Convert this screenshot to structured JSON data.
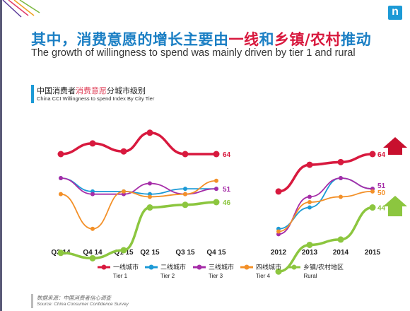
{
  "logo_text": "n",
  "title_parts": {
    "p1": "其中，消费意愿的增长主要由",
    "p2": "一线",
    "p3": "和",
    "p4": "乡镇/农村",
    "p5": "推动"
  },
  "subtitle": "The growth of willingness to spend was mainly driven by tier 1 and rural",
  "chart_title": {
    "cn_prefix": "中国消费者",
    "cn_highlight": "消费意愿",
    "cn_suffix": "分城市级别",
    "en": "China CCI Willingness to spend Index By City Tier"
  },
  "source": {
    "cn": "数据来源：中国消费者信心调查",
    "en": "Source: China Consumer Confidence Survey"
  },
  "colors": {
    "title_blue": "#1b7fc4",
    "highlight_red": "#d8193e",
    "arrow_up": "#8cc63f",
    "arrow_down": "#c8102e"
  },
  "chart_data": [
    {
      "type": "line",
      "x": [
        "Q3 14",
        "Q4 14",
        "Q1 15",
        "Q2 15",
        "Q3 15",
        "Q4 15"
      ],
      "series": [
        {
          "name": "一线城市 Tier 1",
          "color": "#d8193e",
          "values": [
            64,
            68,
            65,
            72,
            64,
            64
          ]
        },
        {
          "name": "二线城市 Tier 2",
          "color": "#1c9ad6",
          "values": [
            55,
            50,
            50,
            49,
            51,
            51
          ]
        },
        {
          "name": "三线城市 Tier 3",
          "color": "#a62da8",
          "values": [
            55,
            49,
            49,
            53,
            49,
            51
          ]
        },
        {
          "name": "四线城市 Tier 4",
          "color": "#f39028",
          "values": [
            49,
            36,
            50,
            48,
            49,
            54
          ]
        },
        {
          "name": "乡镇/农村地区 Rural",
          "color": "#8cc63f",
          "values": [
            27,
            25,
            28,
            44,
            45,
            46
          ]
        }
      ],
      "end_labels": [
        {
          "text": "64",
          "series": 0
        },
        {
          "text": "51",
          "series": 2
        },
        {
          "text": "46",
          "series": 4
        }
      ]
    },
    {
      "type": "line",
      "x": [
        "2012",
        "2013",
        "2014",
        "2015"
      ],
      "series": [
        {
          "name": "一线城市 Tier 1",
          "color": "#d8193e",
          "values": [
            50,
            60,
            61,
            64
          ]
        },
        {
          "name": "二线城市 Tier 2",
          "color": "#1c9ad6",
          "values": [
            36,
            44,
            55,
            51
          ]
        },
        {
          "name": "三线城市 Tier 3",
          "color": "#a62da8",
          "values": [
            34,
            48,
            55,
            51
          ]
        },
        {
          "name": "四线城市 Tier 4",
          "color": "#f39028",
          "values": [
            35,
            46,
            48,
            50
          ]
        },
        {
          "name": "乡镇/农村地区 Rural",
          "color": "#8cc63f",
          "values": [
            20,
            30,
            32,
            44
          ]
        }
      ],
      "end_labels": [
        {
          "text": "64",
          "series": 0
        },
        {
          "text": "51",
          "series": 2
        },
        {
          "text": "50",
          "series": 3
        },
        {
          "text": "44",
          "series": 4
        }
      ]
    }
  ],
  "legend": [
    {
      "cn": "一线城市",
      "en": "Tier 1",
      "color": "#d8193e"
    },
    {
      "cn": "二线城市",
      "en": "Tier 2",
      "color": "#1c9ad6"
    },
    {
      "cn": "三线城市",
      "en": "Tier 3",
      "color": "#a62da8"
    },
    {
      "cn": "四线城市",
      "en": "Tier 4",
      "color": "#f39028"
    },
    {
      "cn": "乡镇/农村地区",
      "en": "Rural",
      "color": "#8cc63f"
    }
  ]
}
